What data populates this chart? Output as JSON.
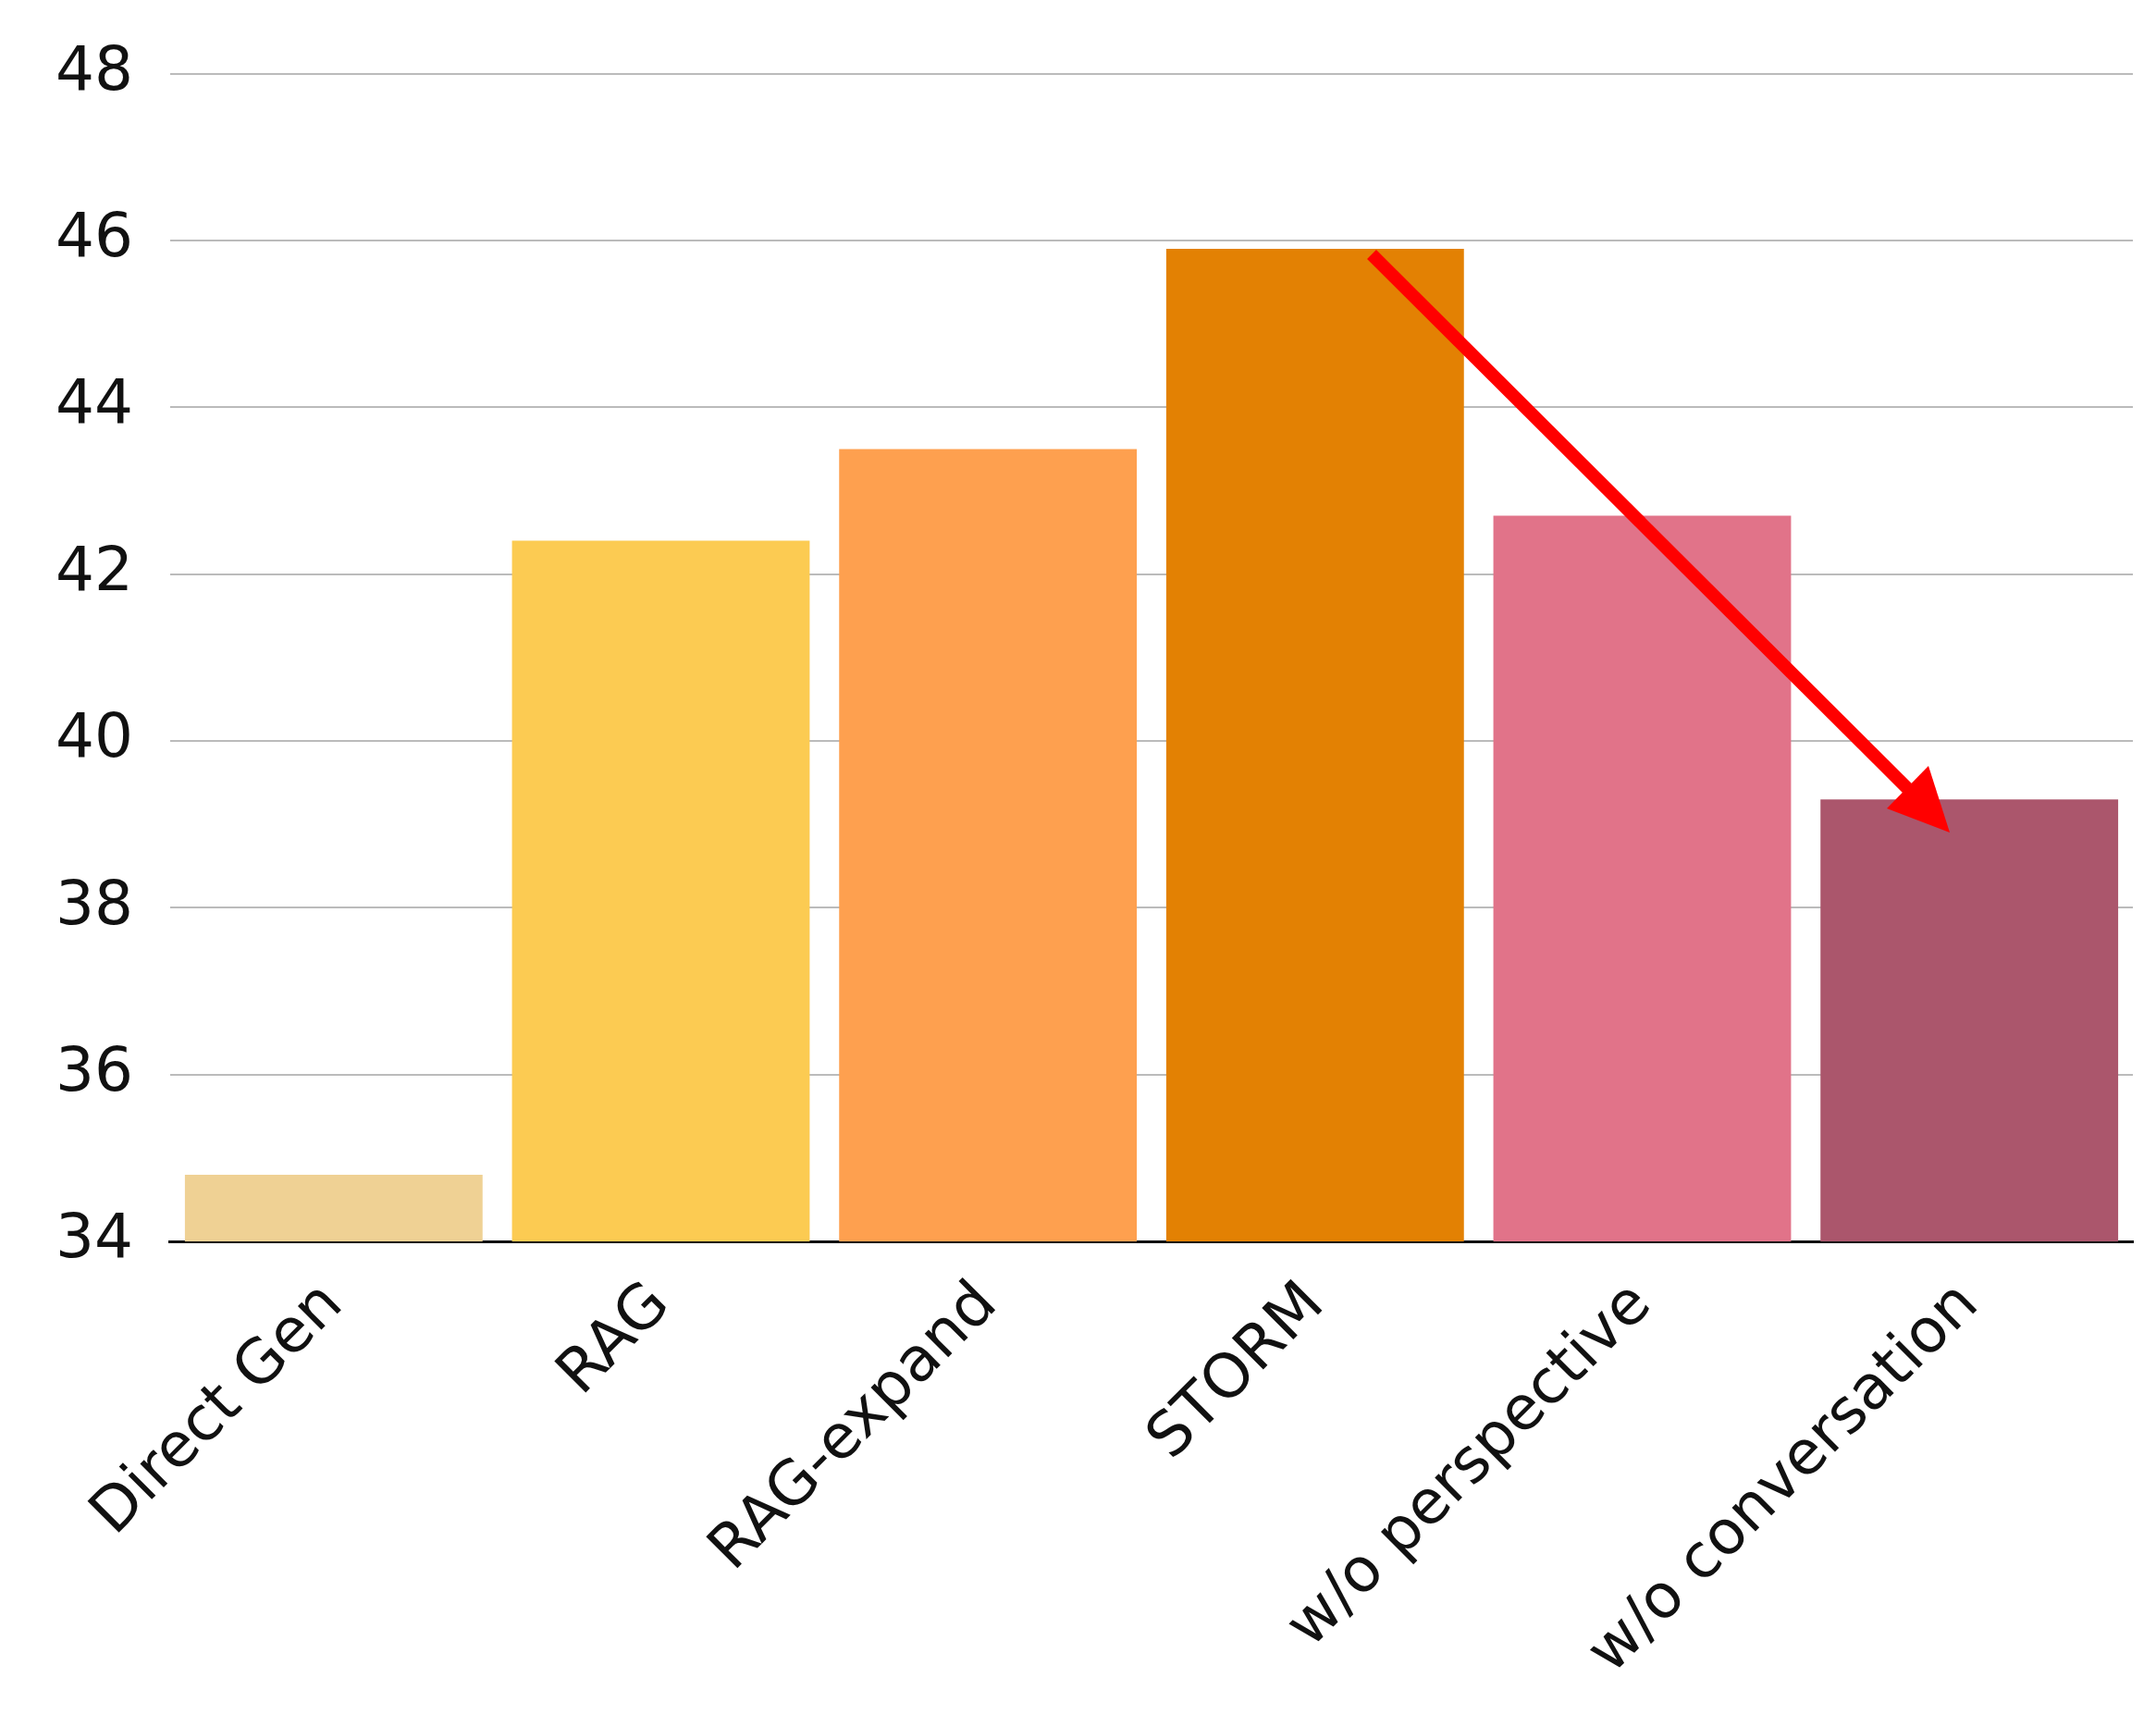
{
  "chart_data": {
    "type": "bar",
    "categories": [
      "Direct Gen",
      "RAG",
      "RAG-expand",
      "STORM",
      "w/o perspective",
      "w/o conversation"
    ],
    "values": [
      34.8,
      42.4,
      43.5,
      45.9,
      42.7,
      39.3
    ],
    "colors": [
      "#efd194",
      "#fccb52",
      "#fea04f",
      "#e38103",
      "#e17389",
      "#ab566c"
    ],
    "ylim": [
      34,
      48
    ],
    "yticks": [
      34,
      36,
      38,
      40,
      42,
      44,
      46,
      48
    ],
    "grid": "y",
    "legend": false
  }
}
